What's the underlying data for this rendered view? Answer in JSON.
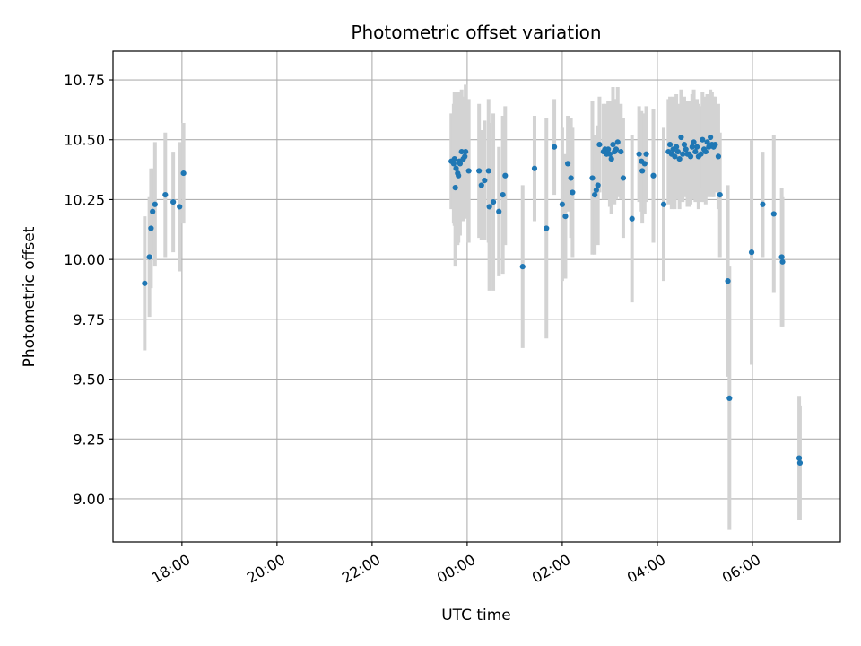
{
  "chart_data": {
    "type": "scatter",
    "title": "Photometric offset variation",
    "xlabel": "UTC time",
    "ylabel": "Photometric offset",
    "x_axis": "datetime",
    "xlim": [
      "16:33",
      "07:51"
    ],
    "ylim": [
      8.82,
      10.87
    ],
    "x_ticks": [
      "18:00",
      "20:00",
      "22:00",
      "00:00",
      "02:00",
      "04:00",
      "06:00"
    ],
    "y_ticks": [
      "9.00",
      "9.25",
      "9.50",
      "9.75",
      "10.00",
      "10.25",
      "10.50",
      "10.75"
    ],
    "grid": true,
    "colors": {
      "marker": "#1f77b4",
      "errorbar": "#d3d3d3",
      "grid": "#b0b0b0"
    },
    "series": [
      {
        "points": [
          {
            "t": "17:13",
            "y": 9.9,
            "e": 0.28
          },
          {
            "t": "17:19",
            "y": 10.01,
            "e": 0.25
          },
          {
            "t": "17:21",
            "y": 10.13,
            "e": 0.25
          },
          {
            "t": "17:23",
            "y": 10.2,
            "e": 0.18
          },
          {
            "t": "17:26",
            "y": 10.23,
            "e": 0.26
          },
          {
            "t": "17:39",
            "y": 10.27,
            "e": 0.26
          },
          {
            "t": "17:49",
            "y": 10.24,
            "e": 0.21
          },
          {
            "t": "17:57",
            "y": 10.22,
            "e": 0.27
          },
          {
            "t": "18:02",
            "y": 10.36,
            "e": 0.21
          },
          {
            "t": "23:40",
            "y": 10.41,
            "e": 0.2
          },
          {
            "t": "23:43",
            "y": 10.4,
            "e": 0.25
          },
          {
            "t": "23:44",
            "y": 10.42,
            "e": 0.28
          },
          {
            "t": "23:45",
            "y": 10.3,
            "e": 0.33
          },
          {
            "t": "23:46",
            "y": 10.38,
            "e": 0.32
          },
          {
            "t": "23:48",
            "y": 10.36,
            "e": 0.3
          },
          {
            "t": "23:49",
            "y": 10.35,
            "e": 0.28
          },
          {
            "t": "23:50",
            "y": 10.41,
            "e": 0.29
          },
          {
            "t": "23:51",
            "y": 10.4,
            "e": 0.3
          },
          {
            "t": "23:53",
            "y": 10.45,
            "e": 0.26
          },
          {
            "t": "23:55",
            "y": 10.42,
            "e": 0.26
          },
          {
            "t": "23:57",
            "y": 10.43,
            "e": 0.24
          },
          {
            "t": "23:58",
            "y": 10.45,
            "e": 0.28
          },
          {
            "t": "00:02",
            "y": 10.37,
            "e": 0.3
          },
          {
            "t": "00:15",
            "y": 10.37,
            "e": 0.28
          },
          {
            "t": "00:18",
            "y": 10.31,
            "e": 0.23
          },
          {
            "t": "00:22",
            "y": 10.33,
            "e": 0.25
          },
          {
            "t": "00:27",
            "y": 10.37,
            "e": 0.3
          },
          {
            "t": "00:28",
            "y": 10.22,
            "e": 0.35
          },
          {
            "t": "00:33",
            "y": 10.24,
            "e": 0.37
          },
          {
            "t": "00:40",
            "y": 10.2,
            "e": 0.27
          },
          {
            "t": "00:45",
            "y": 10.27,
            "e": 0.33
          },
          {
            "t": "00:48",
            "y": 10.35,
            "e": 0.29
          },
          {
            "t": "01:10",
            "y": 9.97,
            "e": 0.34
          },
          {
            "t": "01:25",
            "y": 10.38,
            "e": 0.22
          },
          {
            "t": "01:40",
            "y": 10.13,
            "e": 0.46
          },
          {
            "t": "01:50",
            "y": 10.47,
            "e": 0.2
          },
          {
            "t": "02:00",
            "y": 10.23,
            "e": 0.32
          },
          {
            "t": "02:04",
            "y": 10.18,
            "e": 0.26
          },
          {
            "t": "02:07",
            "y": 10.4,
            "e": 0.2
          },
          {
            "t": "02:11",
            "y": 10.34,
            "e": 0.25
          },
          {
            "t": "02:13",
            "y": 10.28,
            "e": 0.27
          },
          {
            "t": "02:38",
            "y": 10.34,
            "e": 0.32
          },
          {
            "t": "02:41",
            "y": 10.27,
            "e": 0.25
          },
          {
            "t": "02:43",
            "y": 10.29,
            "e": 0.22
          },
          {
            "t": "02:45",
            "y": 10.31,
            "e": 0.25
          },
          {
            "t": "02:47",
            "y": 10.48,
            "e": 0.2
          },
          {
            "t": "02:52",
            "y": 10.45,
            "e": 0.2
          },
          {
            "t": "02:54",
            "y": 10.46,
            "e": 0.19
          },
          {
            "t": "02:56",
            "y": 10.44,
            "e": 0.19
          },
          {
            "t": "02:58",
            "y": 10.46,
            "e": 0.2
          },
          {
            "t": "03:00",
            "y": 10.44,
            "e": 0.22
          },
          {
            "t": "03:02",
            "y": 10.42,
            "e": 0.23
          },
          {
            "t": "03:04",
            "y": 10.48,
            "e": 0.24
          },
          {
            "t": "03:06",
            "y": 10.45,
            "e": 0.22
          },
          {
            "t": "03:08",
            "y": 10.46,
            "e": 0.21
          },
          {
            "t": "03:10",
            "y": 10.49,
            "e": 0.23
          },
          {
            "t": "03:14",
            "y": 10.45,
            "e": 0.2
          },
          {
            "t": "03:17",
            "y": 10.34,
            "e": 0.25
          },
          {
            "t": "03:28",
            "y": 10.17,
            "e": 0.35
          },
          {
            "t": "03:37",
            "y": 10.44,
            "e": 0.2
          },
          {
            "t": "03:40",
            "y": 10.41,
            "e": 0.21
          },
          {
            "t": "03:41",
            "y": 10.37,
            "e": 0.22
          },
          {
            "t": "03:44",
            "y": 10.4,
            "e": 0.21
          },
          {
            "t": "03:46",
            "y": 10.44,
            "e": 0.2
          },
          {
            "t": "03:55",
            "y": 10.35,
            "e": 0.28
          },
          {
            "t": "04:08",
            "y": 10.23,
            "e": 0.32
          },
          {
            "t": "04:14",
            "y": 10.45,
            "e": 0.22
          },
          {
            "t": "04:16",
            "y": 10.48,
            "e": 0.2
          },
          {
            "t": "04:18",
            "y": 10.44,
            "e": 0.23
          },
          {
            "t": "04:20",
            "y": 10.46,
            "e": 0.22
          },
          {
            "t": "04:22",
            "y": 10.43,
            "e": 0.22
          },
          {
            "t": "04:24",
            "y": 10.47,
            "e": 0.22
          },
          {
            "t": "04:26",
            "y": 10.45,
            "e": 0.2
          },
          {
            "t": "04:28",
            "y": 10.42,
            "e": 0.21
          },
          {
            "t": "04:30",
            "y": 10.51,
            "e": 0.2
          },
          {
            "t": "04:32",
            "y": 10.44,
            "e": 0.2
          },
          {
            "t": "04:34",
            "y": 10.48,
            "e": 0.2
          },
          {
            "t": "04:36",
            "y": 10.46,
            "e": 0.2
          },
          {
            "t": "04:38",
            "y": 10.44,
            "e": 0.22
          },
          {
            "t": "04:40",
            "y": 10.44,
            "e": 0.22
          },
          {
            "t": "04:42",
            "y": 10.43,
            "e": 0.2
          },
          {
            "t": "04:44",
            "y": 10.47,
            "e": 0.22
          },
          {
            "t": "04:46",
            "y": 10.49,
            "e": 0.22
          },
          {
            "t": "04:48",
            "y": 10.45,
            "e": 0.21
          },
          {
            "t": "04:50",
            "y": 10.47,
            "e": 0.2
          },
          {
            "t": "04:52",
            "y": 10.43,
            "e": 0.22
          },
          {
            "t": "04:55",
            "y": 10.44,
            "e": 0.2
          },
          {
            "t": "04:57",
            "y": 10.5,
            "e": 0.2
          },
          {
            "t": "04:59",
            "y": 10.46,
            "e": 0.22
          },
          {
            "t": "05:01",
            "y": 10.45,
            "e": 0.22
          },
          {
            "t": "05:03",
            "y": 10.49,
            "e": 0.2
          },
          {
            "t": "05:05",
            "y": 10.47,
            "e": 0.21
          },
          {
            "t": "05:07",
            "y": 10.51,
            "e": 0.2
          },
          {
            "t": "05:09",
            "y": 10.48,
            "e": 0.22
          },
          {
            "t": "05:11",
            "y": 10.47,
            "e": 0.21
          },
          {
            "t": "05:13",
            "y": 10.48,
            "e": 0.2
          },
          {
            "t": "05:17",
            "y": 10.43,
            "e": 0.22
          },
          {
            "t": "05:19",
            "y": 10.27,
            "e": 0.26
          },
          {
            "t": "05:29",
            "y": 9.91,
            "e": 0.4
          },
          {
            "t": "05:31",
            "y": 9.42,
            "e": 0.55
          },
          {
            "t": "05:59",
            "y": 10.03,
            "e": 0.47
          },
          {
            "t": "06:13",
            "y": 10.23,
            "e": 0.22
          },
          {
            "t": "06:27",
            "y": 10.19,
            "e": 0.33
          },
          {
            "t": "06:37",
            "y": 10.01,
            "e": 0.29
          },
          {
            "t": "06:38",
            "y": 9.99,
            "e": 0.27
          },
          {
            "t": "06:59",
            "y": 9.17,
            "e": 0.26
          },
          {
            "t": "07:00",
            "y": 9.15,
            "e": 0.24
          }
        ]
      }
    ]
  }
}
